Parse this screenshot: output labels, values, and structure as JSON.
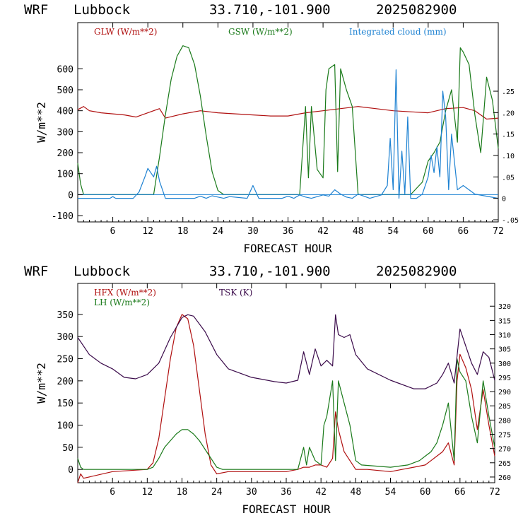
{
  "colors": {
    "red": "#b01010",
    "green": "#1a7a1a",
    "blue": "#1e82d2",
    "purple": "#3a0a4a",
    "axis": "#000000"
  },
  "chart_data": [
    {
      "type": "line",
      "header": {
        "model": "WRF",
        "site": "Lubbock",
        "coords": "33.710,-101.900",
        "run": "2025082900"
      },
      "xlabel": "FORECAST HOUR",
      "ylabel": "W/m**2",
      "xlim": [
        0,
        72
      ],
      "ylim": [
        -130,
        820
      ],
      "y2lim": [
        -0.055,
        0.41
      ],
      "x_ticks": [
        6,
        12,
        18,
        24,
        30,
        36,
        42,
        48,
        54,
        60,
        66,
        72
      ],
      "x_tick_labels": [
        "6",
        "12",
        "18",
        "24",
        "30",
        "36",
        "42",
        "48",
        "54",
        "60",
        "66",
        "72"
      ],
      "y_ticks": [
        -100,
        0,
        100,
        200,
        300,
        400,
        500,
        600
      ],
      "y_tick_labels": [
        "-100",
        "0",
        "100",
        "200",
        "300",
        "400",
        "500",
        "600"
      ],
      "y2_ticks": [
        -0.05,
        0,
        0.05,
        0.1,
        0.15,
        0.2,
        0.25
      ],
      "y2_tick_labels": [
        "-.05",
        "0",
        ".05",
        ".10",
        ".15",
        ".20",
        ".25"
      ],
      "grid": false,
      "legend": "top",
      "series": [
        {
          "name": "GLW (W/m**2)",
          "color": "red",
          "axis": "left",
          "x": [
            0,
            1,
            2,
            4,
            6,
            8,
            10,
            12,
            14,
            15,
            18,
            21,
            24,
            27,
            30,
            33,
            36,
            39,
            42,
            45,
            48,
            51,
            54,
            57,
            60,
            63,
            66,
            68,
            70,
            72
          ],
          "y": [
            405,
            420,
            400,
            390,
            385,
            380,
            370,
            390,
            410,
            365,
            385,
            400,
            390,
            385,
            380,
            375,
            375,
            390,
            400,
            410,
            420,
            410,
            400,
            395,
            390,
            410,
            415,
            400,
            360,
            365
          ]
        },
        {
          "name": "GSW (W/m**2)",
          "color": "green",
          "axis": "left",
          "x": [
            0,
            0.5,
            1,
            13,
            14,
            15,
            16,
            17,
            18,
            19,
            20,
            21,
            22,
            23,
            24,
            25,
            38,
            39,
            39.5,
            40,
            41,
            42,
            42.5,
            43,
            44,
            44.5,
            45,
            46,
            47,
            48,
            57,
            59,
            60,
            61,
            62,
            63,
            64,
            65,
            65.5,
            66,
            67,
            68,
            69,
            70,
            71,
            72
          ],
          "y": [
            150,
            50,
            0,
            0,
            180,
            380,
            550,
            660,
            710,
            700,
            620,
            470,
            280,
            110,
            20,
            0,
            0,
            420,
            80,
            420,
            120,
            80,
            500,
            600,
            620,
            110,
            600,
            500,
            420,
            0,
            0,
            60,
            160,
            200,
            250,
            400,
            500,
            250,
            700,
            680,
            620,
            380,
            200,
            560,
            450,
            220
          ]
        },
        {
          "name": "Integrated cloud (mm)",
          "color": "blue",
          "axis": "right",
          "x": [
            0,
            5.5,
            6,
            6.5,
            9.5,
            10.5,
            11.5,
            12,
            13,
            13.5,
            14,
            15,
            20,
            21,
            22,
            23,
            24,
            25,
            26,
            29,
            30,
            31,
            35,
            36,
            37,
            38,
            39,
            40,
            42,
            43,
            44,
            45,
            46,
            47,
            48,
            50,
            52,
            53,
            53.5,
            54,
            54.5,
            55,
            55.5,
            56,
            56.5,
            57,
            58,
            59,
            60,
            60.5,
            61,
            61.5,
            62,
            62.5,
            63,
            63.5,
            64,
            65,
            66,
            68,
            70,
            72
          ],
          "y": [
            0,
            0,
            0.004,
            0,
            0,
            0.015,
            0.05,
            0.07,
            0.05,
            0.075,
            0.04,
            0,
            0,
            0.005,
            0,
            0.006,
            0.003,
            0,
            0.004,
            0,
            0.03,
            0,
            0,
            0.005,
            0,
            0.008,
            0.003,
            0,
            0.008,
            0.005,
            0.02,
            0.01,
            0.003,
            0,
            0.01,
            0,
            0.008,
            0.03,
            0.14,
            0.02,
            0.3,
            0,
            0.11,
            0.01,
            0.19,
            0,
            0,
            0.01,
            0.05,
            0.1,
            0.06,
            0.12,
            0.05,
            0.25,
            0.19,
            0.02,
            0.15,
            0.02,
            0.03,
            0.01,
            0.005,
            0
          ]
        }
      ]
    },
    {
      "type": "line",
      "header": {
        "model": "WRF",
        "site": "Lubbock",
        "coords": "33.710,-101.900",
        "run": "2025082900"
      },
      "xlabel": "FORECAST HOUR",
      "ylabel": "W/m**2",
      "xlim": [
        0,
        72
      ],
      "ylim": [
        -30,
        420
      ],
      "y2lim": [
        258,
        328
      ],
      "x_ticks": [
        6,
        12,
        18,
        24,
        30,
        36,
        42,
        48,
        54,
        60,
        66,
        72
      ],
      "x_tick_labels": [
        "6",
        "12",
        "18",
        "24",
        "30",
        "36",
        "42",
        "48",
        "54",
        "60",
        "66",
        "72"
      ],
      "y_ticks": [
        0,
        50,
        100,
        150,
        200,
        250,
        300,
        350
      ],
      "y_tick_labels": [
        "0",
        "50",
        "100",
        "150",
        "200",
        "250",
        "300",
        "350"
      ],
      "y2_ticks": [
        260,
        265,
        270,
        275,
        280,
        285,
        290,
        295,
        300,
        305,
        310,
        315,
        320
      ],
      "y2_tick_labels": [
        "260",
        "265",
        "270",
        "275",
        "280",
        "285",
        "290",
        "295",
        "300",
        "305",
        "310",
        "315",
        "320"
      ],
      "grid": false,
      "legend": "top-left",
      "series": [
        {
          "name": "HFX (W/m**2)",
          "color": "red",
          "axis": "left",
          "x": [
            0,
            0.5,
            1,
            6,
            12,
            13,
            14,
            15,
            16,
            17,
            18,
            19,
            20,
            21,
            22,
            23,
            24,
            26,
            36,
            38,
            39,
            40,
            41,
            42,
            43,
            44,
            44.5,
            45,
            46,
            47,
            48,
            50,
            54,
            56,
            58,
            60,
            61,
            62,
            63,
            64,
            65,
            65.5,
            66,
            67,
            68,
            69,
            70,
            71,
            72
          ],
          "y": [
            -30,
            -10,
            -20,
            -5,
            0,
            15,
            70,
            160,
            250,
            320,
            350,
            340,
            280,
            180,
            80,
            10,
            -10,
            -5,
            -5,
            0,
            5,
            5,
            10,
            10,
            5,
            25,
            130,
            90,
            40,
            20,
            0,
            0,
            -5,
            0,
            5,
            10,
            20,
            30,
            40,
            60,
            10,
            200,
            260,
            230,
            180,
            90,
            180,
            100,
            30
          ]
        },
        {
          "name": "LH (W/m**2)",
          "color": "green",
          "axis": "left",
          "x": [
            0,
            0.5,
            1,
            6,
            12,
            13,
            14,
            15,
            16,
            17,
            18,
            19,
            20,
            21,
            22,
            23,
            24,
            25,
            38,
            39,
            39.5,
            40,
            41,
            42,
            42.5,
            43,
            44,
            44.5,
            45,
            46,
            47,
            48,
            49,
            54,
            57,
            59,
            60,
            61,
            62,
            63,
            64,
            65,
            65.5,
            66,
            67,
            68,
            69,
            70,
            71,
            72
          ],
          "y": [
            25,
            5,
            0,
            0,
            0,
            5,
            25,
            50,
            65,
            80,
            90,
            90,
            80,
            65,
            45,
            25,
            5,
            0,
            0,
            50,
            10,
            50,
            20,
            10,
            100,
            120,
            200,
            20,
            200,
            150,
            100,
            20,
            10,
            5,
            10,
            20,
            30,
            40,
            60,
            100,
            150,
            20,
            250,
            220,
            200,
            120,
            60,
            200,
            120,
            50
          ]
        },
        {
          "name": "TSK (K)",
          "color": "purple",
          "axis": "right",
          "x": [
            0,
            2,
            4,
            6,
            8,
            10,
            12,
            14,
            16,
            18,
            19,
            20,
            22,
            24,
            26,
            30,
            34,
            36,
            38,
            39,
            40,
            41,
            42,
            43,
            44,
            44.5,
            45,
            46,
            47,
            48,
            50,
            54,
            58,
            60,
            62,
            63,
            64,
            65,
            66,
            67,
            68,
            69,
            70,
            71,
            72
          ],
          "y": [
            309,
            303,
            300,
            298,
            295,
            294.5,
            296,
            300,
            309,
            316,
            317,
            316.5,
            311,
            303,
            298,
            295,
            293.5,
            293,
            294,
            304,
            296,
            305,
            299,
            301,
            299,
            317,
            310,
            309,
            310,
            303,
            298,
            294,
            291,
            291,
            293,
            296,
            300,
            293,
            312,
            306,
            300,
            296,
            304,
            302,
            294
          ]
        }
      ]
    }
  ]
}
